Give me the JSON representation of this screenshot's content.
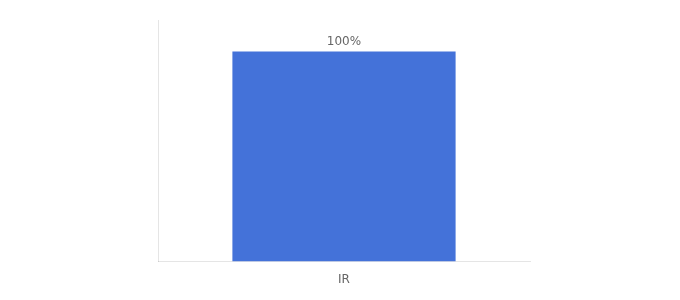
{
  "chart_data": {
    "type": "bar",
    "categories": [
      "IR"
    ],
    "values": [
      100
    ],
    "value_labels": [
      "100%"
    ],
    "color": "#4472d9",
    "ylim": [
      0,
      115
    ],
    "grid": false,
    "legend": false,
    "data_labels": true,
    "tick_labels": "x"
  }
}
